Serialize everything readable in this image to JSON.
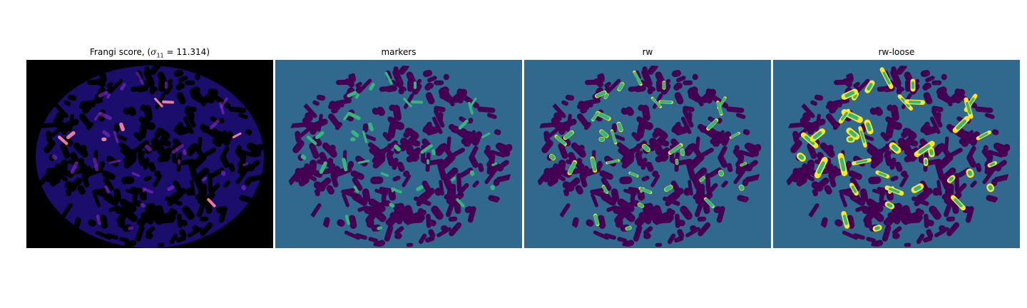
{
  "figure": {
    "panels": [
      {
        "id": "frangi",
        "title_prefix": "Frangi score, (",
        "title_math_symbol": "σ",
        "title_math_subscript": "11",
        "title_math_rest": " = 11.314)",
        "colormap": "magma",
        "background": "#000000",
        "mask_color": "#2e15a3",
        "peak_color": "#ff8a9a"
      },
      {
        "id": "markers",
        "title": "markers",
        "colormap": "viridis",
        "background": "#31688e",
        "mask_color": "#440154",
        "label_color": "#35b779"
      },
      {
        "id": "rw",
        "title": "rw",
        "colormap": "viridis",
        "background": "#31688e",
        "mask_color": "#440154",
        "label_color": "#35b779",
        "outline_color": "#fde725"
      },
      {
        "id": "rw-loose",
        "title": "rw-loose",
        "colormap": "viridis",
        "background": "#31688e",
        "mask_color": "#440154",
        "label_color": "#35b779",
        "outline_color": "#fde725"
      }
    ]
  }
}
